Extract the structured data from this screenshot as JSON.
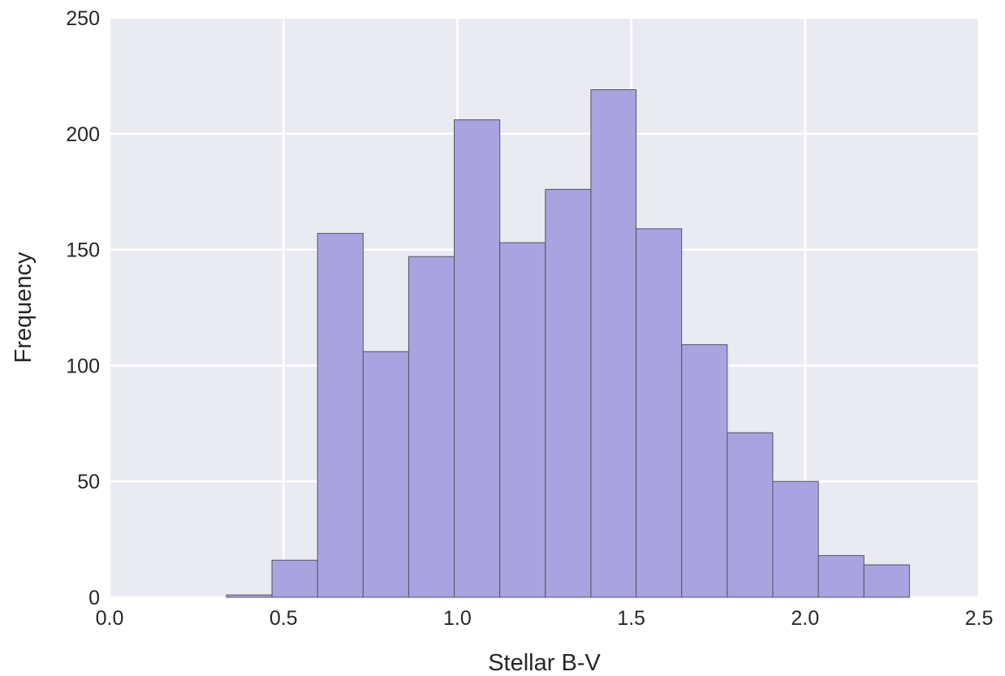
{
  "chart_data": {
    "type": "bar",
    "xlabel": "Stellar B-V",
    "ylabel": "Frequency",
    "xlim": [
      0.0,
      2.5
    ],
    "ylim": [
      0,
      250
    ],
    "x_ticks": [
      "0.0",
      "0.5",
      "1.0",
      "1.5",
      "2.0",
      "2.5"
    ],
    "y_ticks": [
      "0",
      "50",
      "100",
      "150",
      "200",
      "250"
    ],
    "grid": true,
    "bar_color": "#a9a3e0",
    "bar_edge_color": "#55535f",
    "plot_background": "#eaeaf2",
    "bins": [
      {
        "x0": 0.01,
        "x1": 0.145,
        "count": 0
      },
      {
        "x0": 0.145,
        "x1": 0.336,
        "count": 0
      },
      {
        "x0": 0.336,
        "x1": 0.467,
        "count": 1
      },
      {
        "x0": 0.467,
        "x1": 0.598,
        "count": 16
      },
      {
        "x0": 0.598,
        "x1": 0.729,
        "count": 157
      },
      {
        "x0": 0.729,
        "x1": 0.86,
        "count": 106
      },
      {
        "x0": 0.86,
        "x1": 0.991,
        "count": 147
      },
      {
        "x0": 0.991,
        "x1": 1.122,
        "count": 206
      },
      {
        "x0": 1.122,
        "x1": 1.253,
        "count": 153
      },
      {
        "x0": 1.253,
        "x1": 1.384,
        "count": 176
      },
      {
        "x0": 1.384,
        "x1": 1.514,
        "count": 219
      },
      {
        "x0": 1.514,
        "x1": 1.645,
        "count": 159
      },
      {
        "x0": 1.645,
        "x1": 1.776,
        "count": 109
      },
      {
        "x0": 1.776,
        "x1": 1.907,
        "count": 71
      },
      {
        "x0": 1.907,
        "x1": 2.038,
        "count": 50
      },
      {
        "x0": 2.038,
        "x1": 2.169,
        "count": 18
      },
      {
        "x0": 2.169,
        "x1": 2.3,
        "count": 14
      }
    ]
  }
}
